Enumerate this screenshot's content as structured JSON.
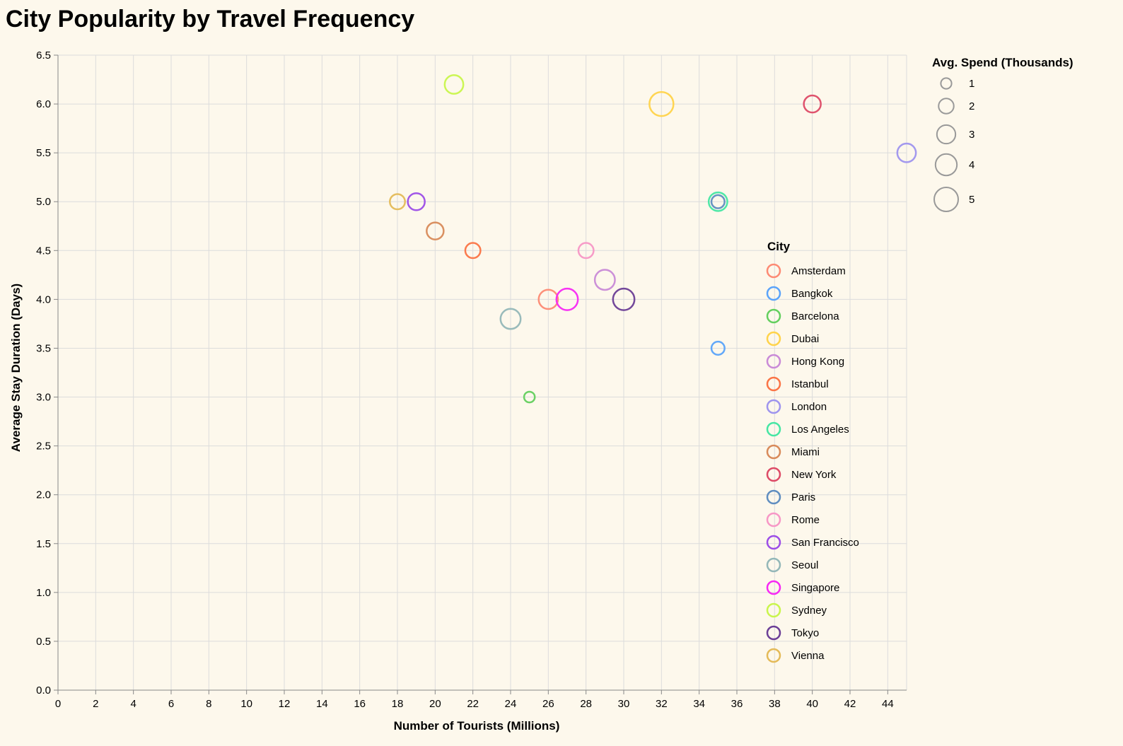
{
  "chart_data": {
    "type": "scatter",
    "title": "City Popularity by Travel Frequency",
    "xlabel": "Number of Tourists (Millions)",
    "ylabel": "Average Stay Duration (Days)",
    "xlim": [
      0,
      45
    ],
    "ylim": [
      0,
      6.5
    ],
    "x_ticks": [
      "0",
      "2",
      "4",
      "6",
      "8",
      "10",
      "12",
      "14",
      "16",
      "18",
      "20",
      "22",
      "24",
      "26",
      "28",
      "30",
      "32",
      "34",
      "36",
      "38",
      "40",
      "42",
      "44"
    ],
    "y_ticks": [
      "0.0",
      "0.5",
      "1.0",
      "1.5",
      "2.0",
      "2.5",
      "3.0",
      "3.5",
      "4.0",
      "4.5",
      "5.0",
      "5.5",
      "6.0",
      "6.5"
    ],
    "grid": true,
    "size_legend_title": "Avg. Spend (Thousands)",
    "size_legend": [
      {
        "label": "1",
        "value": 1
      },
      {
        "label": "2",
        "value": 2
      },
      {
        "label": "3",
        "value": 3
      },
      {
        "label": "4",
        "value": 4
      },
      {
        "label": "5",
        "value": 5
      }
    ],
    "color_legend_title": "City",
    "color_legend_placement": "right",
    "series": [
      {
        "name": "Amsterdam",
        "color": "#fd8a74",
        "x": 26,
        "y": 4.0,
        "spend": 3.2
      },
      {
        "name": "Bangkok",
        "color": "#5aa3fa",
        "x": 35,
        "y": 3.5,
        "spend": 1.5
      },
      {
        "name": "Barcelona",
        "color": "#63cf5e",
        "x": 25,
        "y": 3.0,
        "spend": 1.0
      },
      {
        "name": "Dubai",
        "color": "#ffd34a",
        "x": 32,
        "y": 6.0,
        "spend": 5.0
      },
      {
        "name": "Hong Kong",
        "color": "#c98ad7",
        "x": 29,
        "y": 4.2,
        "spend": 3.5
      },
      {
        "name": "Istanbul",
        "color": "#fb7446",
        "x": 22,
        "y": 4.5,
        "spend": 2.0
      },
      {
        "name": "London",
        "color": "#9e94ee",
        "x": 45,
        "y": 5.5,
        "spend": 3.0
      },
      {
        "name": "Los Angeles",
        "color": "#45e6a3",
        "x": 35,
        "y": 5.0,
        "spend": 3.0
      },
      {
        "name": "Miami",
        "color": "#d88a5a",
        "x": 20,
        "y": 4.7,
        "spend": 2.5
      },
      {
        "name": "New York",
        "color": "#dd4a66",
        "x": 40,
        "y": 6.0,
        "spend": 2.5
      },
      {
        "name": "Paris",
        "color": "#5f8dc0",
        "x": 35,
        "y": 5.0,
        "spend": 1.5
      },
      {
        "name": "Rome",
        "color": "#f797c6",
        "x": 28,
        "y": 4.5,
        "spend": 2.0
      },
      {
        "name": "San Francisco",
        "color": "#9c4de7",
        "x": 19,
        "y": 5.0,
        "spend": 2.5
      },
      {
        "name": "Seoul",
        "color": "#93b7b8",
        "x": 24,
        "y": 3.8,
        "spend": 3.5
      },
      {
        "name": "Singapore",
        "color": "#f728f4",
        "x": 27,
        "y": 4.0,
        "spend": 4.0
      },
      {
        "name": "Sydney",
        "color": "#c9f54c",
        "x": 21,
        "y": 6.2,
        "spend": 3.0
      },
      {
        "name": "Tokyo",
        "color": "#6b3e96",
        "x": 30,
        "y": 4.0,
        "spend": 4.0
      },
      {
        "name": "Vienna",
        "color": "#e4ba58",
        "x": 18,
        "y": 5.0,
        "spend": 2.0
      }
    ]
  }
}
